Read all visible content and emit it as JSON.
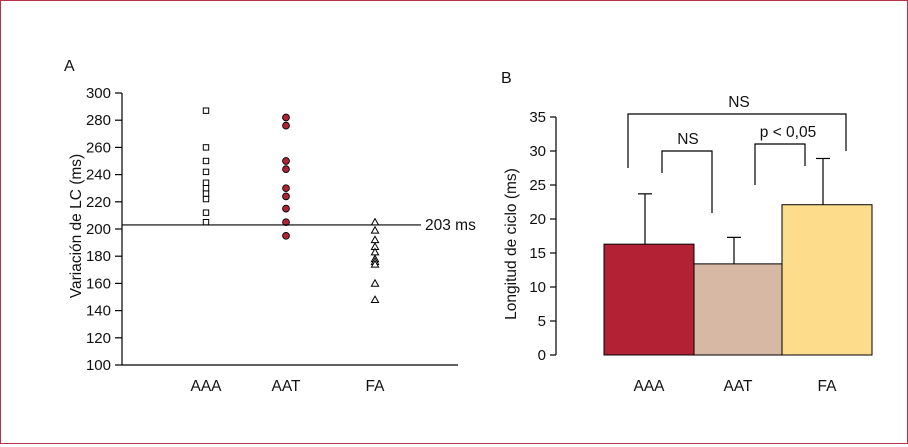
{
  "colors": {
    "border": "#b8324a",
    "aaa": "#b22234",
    "aat": "#d6b8a5",
    "fa": "#fddc8c",
    "marker_aat": "#b22234"
  },
  "chart_data": [
    {
      "panel": "A",
      "type": "scatter",
      "ylabel": "Variación de LC (ms)",
      "xlabel": "",
      "ylim": [
        100,
        300
      ],
      "yticks": [
        "100",
        "120",
        "140",
        "160",
        "180",
        "200",
        "220",
        "240",
        "260",
        "280",
        "300"
      ],
      "categories": [
        "AAA",
        "AAT",
        "FA"
      ],
      "series": [
        {
          "category": "AAA",
          "marker": "open-square",
          "values": [
            287,
            260,
            250,
            242,
            234,
            230,
            226,
            222,
            212,
            205
          ]
        },
        {
          "category": "AAT",
          "marker": "filled-circle",
          "values": [
            282,
            276,
            250,
            244,
            230,
            224,
            215,
            205,
            195
          ]
        },
        {
          "category": "FA",
          "marker": "open-triangle",
          "values": [
            205,
            199,
            192,
            187,
            183,
            178,
            176,
            174,
            160,
            148
          ]
        }
      ],
      "reference_line": {
        "value": 203,
        "label": "203 ms"
      }
    },
    {
      "panel": "B",
      "type": "bar",
      "ylabel": "Longitud de ciclo (ms)",
      "xlabel": "",
      "ylim": [
        0,
        35
      ],
      "yticks": [
        "0",
        "5",
        "10",
        "15",
        "20",
        "25",
        "30",
        "35"
      ],
      "categories": [
        "AAA",
        "AAT",
        "FA"
      ],
      "values": [
        16.3,
        13.4,
        22.1
      ],
      "errors": [
        7.4,
        3.9,
        6.8
      ],
      "annotations": [
        {
          "label": "NS",
          "between": [
            "AAA",
            "FA"
          ]
        },
        {
          "label": "NS",
          "between": [
            "AAA",
            "AAT"
          ]
        },
        {
          "label": "p < 0,05",
          "between": [
            "AAT",
            "FA"
          ]
        }
      ]
    }
  ]
}
